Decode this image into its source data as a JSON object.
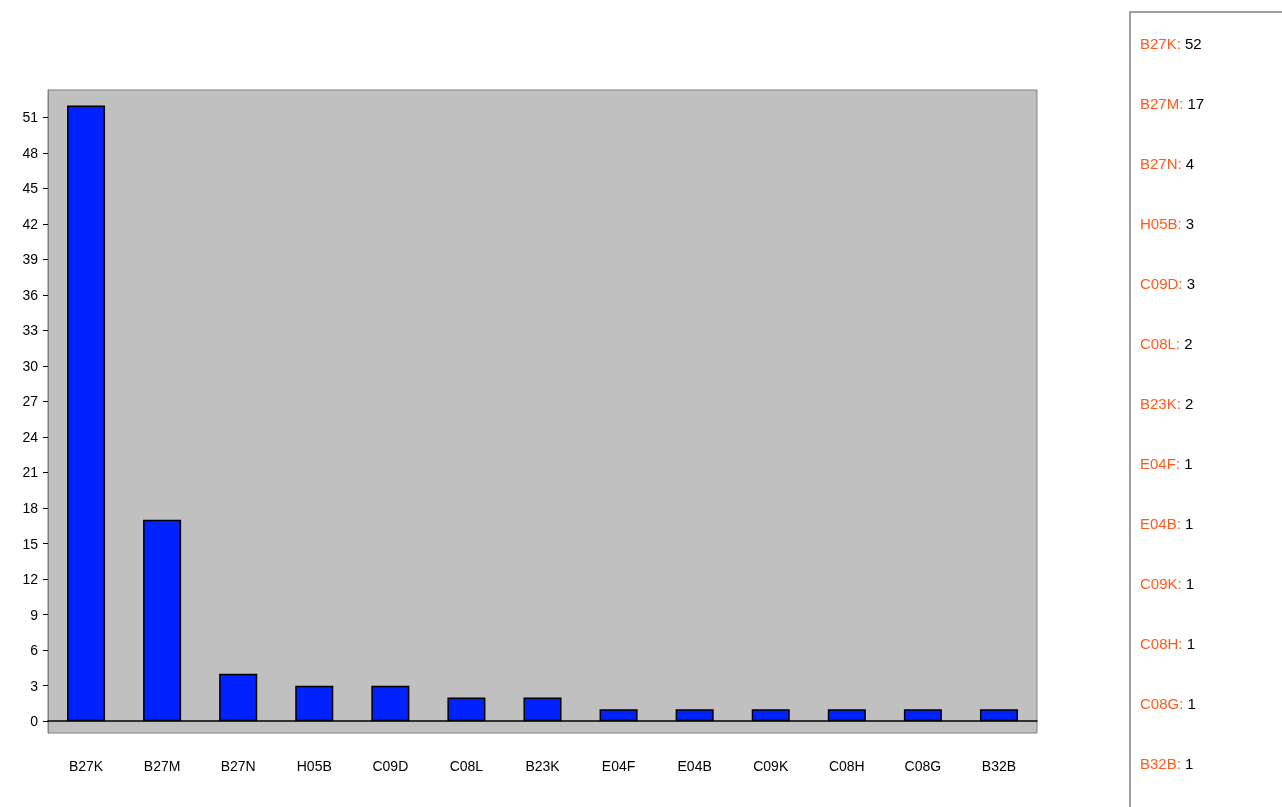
{
  "chart_data": {
    "type": "bar",
    "categories": [
      "B27K",
      "B27M",
      "B27N",
      "H05B",
      "C09D",
      "C08L",
      "B23K",
      "E04F",
      "E04B",
      "C09K",
      "C08H",
      "C08G",
      "B32B"
    ],
    "values": [
      52,
      17,
      4,
      3,
      3,
      2,
      2,
      1,
      1,
      1,
      1,
      1,
      1
    ],
    "color": "#0022ff",
    "ylim": [
      -1,
      53.3
    ],
    "yticks": [
      0,
      3,
      6,
      9,
      12,
      15,
      18,
      21,
      24,
      27,
      30,
      33,
      36,
      39,
      42,
      45,
      48,
      51
    ],
    "annotations": [
      "B27K: 52",
      "B27M: 17",
      "B27N: 4",
      "H05B: 3",
      "C09D: 3",
      "C08L: 2",
      "B23K: 2",
      "E04F: 1",
      "E04B: 1",
      "C09K: 1",
      "C08H: 1",
      "C08G: 1",
      "B32B: 1"
    ]
  }
}
